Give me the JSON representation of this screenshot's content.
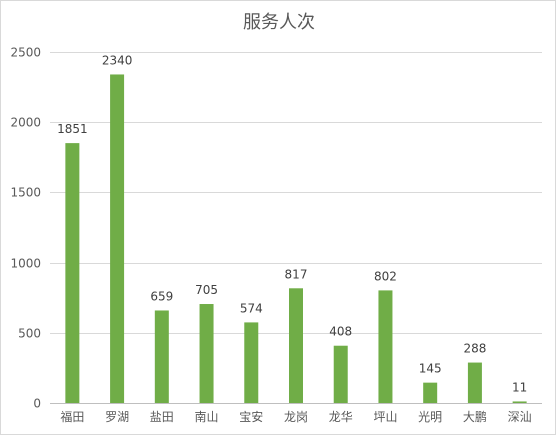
{
  "chart_data": {
    "type": "bar",
    "title": "服务人次",
    "categories": [
      "福田",
      "罗湖",
      "盐田",
      "南山",
      "宝安",
      "龙岗",
      "龙华",
      "坪山",
      "光明",
      "大鹏",
      "深汕"
    ],
    "values": [
      1851,
      2340,
      659,
      705,
      574,
      817,
      408,
      802,
      145,
      288,
      11
    ],
    "ylim": [
      0,
      2500
    ],
    "yticks": [
      0,
      500,
      1000,
      1500,
      2000,
      2500
    ],
    "grid": true,
    "legend": "none",
    "colors": {
      "bar": "#70ad47"
    }
  }
}
